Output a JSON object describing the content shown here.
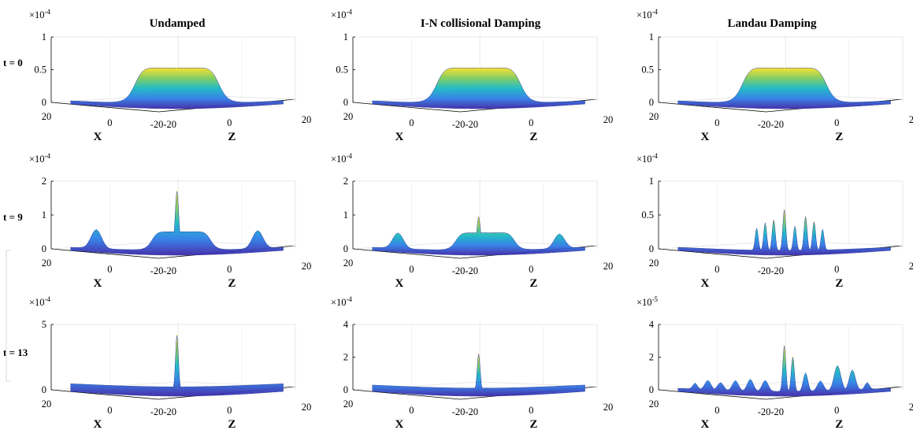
{
  "columns": [
    {
      "title": "Undamped"
    },
    {
      "title": "I-N collisional Damping"
    },
    {
      "title": "Landau Damping"
    }
  ],
  "rows": [
    {
      "label": "t = 0"
    },
    {
      "label": "t = 9"
    },
    {
      "label": "t = 13"
    }
  ],
  "axes": {
    "x_label": "X",
    "z_label": "Z",
    "x_ticks": [
      "20",
      "0",
      "-20"
    ],
    "z_ticks": [
      "-20",
      "0",
      "20"
    ]
  },
  "chart_data": [
    {
      "type": "surface",
      "row": "t = 0",
      "column": "Undamped",
      "exponent_base": "×10",
      "exponent_power": "-4",
      "z_ticks": [
        "0",
        "0.5",
        "1"
      ],
      "ylim": [
        0,
        1
      ],
      "features": [
        {
          "kind": "plateau",
          "pos": 0.5,
          "height": 0.55,
          "width": 0.2
        }
      ],
      "colormap": "parula"
    },
    {
      "type": "surface",
      "row": "t = 0",
      "column": "I-N collisional Damping",
      "exponent_base": "×10",
      "exponent_power": "-4",
      "z_ticks": [
        "0",
        "0.5",
        "1"
      ],
      "ylim": [
        0,
        1
      ],
      "features": [
        {
          "kind": "plateau",
          "pos": 0.5,
          "height": 0.55,
          "width": 0.2
        }
      ],
      "colormap": "parula"
    },
    {
      "type": "surface",
      "row": "t = 0",
      "column": "Landau Damping",
      "exponent_base": "×10",
      "exponent_power": "-4",
      "z_ticks": [
        "0",
        "0.5",
        "1"
      ],
      "ylim": [
        0,
        1
      ],
      "features": [
        {
          "kind": "plateau",
          "pos": 0.5,
          "height": 0.55,
          "width": 0.2
        }
      ],
      "colormap": "parula"
    },
    {
      "type": "surface",
      "row": "t = 9",
      "column": "Undamped",
      "exponent_base": "×10",
      "exponent_power": "-4",
      "z_ticks": [
        "0",
        "1",
        "2"
      ],
      "ylim": [
        0,
        2
      ],
      "features": [
        {
          "kind": "bump",
          "pos": 0.12,
          "height": 0.55,
          "width": 0.035
        },
        {
          "kind": "plateau",
          "pos": 0.52,
          "height": 0.55,
          "width": 0.14
        },
        {
          "kind": "spike",
          "pos": 0.5,
          "height": 1.75,
          "width": 0.012
        },
        {
          "kind": "bump",
          "pos": 0.88,
          "height": 0.52,
          "width": 0.035
        }
      ],
      "colormap": "parula"
    },
    {
      "type": "surface",
      "row": "t = 9",
      "column": "I-N collisional Damping",
      "exponent_base": "×10",
      "exponent_power": "-4",
      "z_ticks": [
        "0",
        "1",
        "2"
      ],
      "ylim": [
        0,
        2
      ],
      "features": [
        {
          "kind": "bump",
          "pos": 0.12,
          "height": 0.45,
          "width": 0.035
        },
        {
          "kind": "plateau",
          "pos": 0.53,
          "height": 0.52,
          "width": 0.14
        },
        {
          "kind": "spike",
          "pos": 0.5,
          "height": 1.0,
          "width": 0.012
        },
        {
          "kind": "bump",
          "pos": 0.88,
          "height": 0.42,
          "width": 0.035
        }
      ],
      "colormap": "parula"
    },
    {
      "type": "surface",
      "row": "t = 9",
      "column": "Landau Damping",
      "exponent_base": "×10",
      "exponent_power": "-4",
      "z_ticks": [
        "0",
        "0.5",
        "1"
      ],
      "ylim": [
        0,
        1
      ],
      "features": [
        {
          "kind": "spike",
          "pos": 0.37,
          "height": 0.32,
          "width": 0.01
        },
        {
          "kind": "spike",
          "pos": 0.41,
          "height": 0.4,
          "width": 0.01
        },
        {
          "kind": "spike",
          "pos": 0.45,
          "height": 0.45,
          "width": 0.01
        },
        {
          "kind": "spike",
          "pos": 0.5,
          "height": 0.6,
          "width": 0.01
        },
        {
          "kind": "spike",
          "pos": 0.55,
          "height": 0.35,
          "width": 0.01
        },
        {
          "kind": "spike",
          "pos": 0.6,
          "height": 0.5,
          "width": 0.01
        },
        {
          "kind": "spike",
          "pos": 0.64,
          "height": 0.42,
          "width": 0.01
        },
        {
          "kind": "spike",
          "pos": 0.68,
          "height": 0.3,
          "width": 0.01
        }
      ],
      "colormap": "parula"
    },
    {
      "type": "surface",
      "row": "t = 13",
      "column": "Undamped",
      "exponent_base": "×10",
      "exponent_power": "-4",
      "z_ticks": [
        "0",
        "5"
      ],
      "ylim": [
        0,
        5
      ],
      "features": [
        {
          "kind": "plateau",
          "pos": 0.5,
          "height": 0.35,
          "width": 0.75
        },
        {
          "kind": "spike",
          "pos": 0.5,
          "height": 4.3,
          "width": 0.01
        }
      ],
      "colormap": "parula"
    },
    {
      "type": "surface",
      "row": "t = 13",
      "column": "I-N collisional Damping",
      "exponent_base": "×10",
      "exponent_power": "-4",
      "z_ticks": [
        "0",
        "2",
        "4"
      ],
      "ylim": [
        0,
        4
      ],
      "features": [
        {
          "kind": "plateau",
          "pos": 0.5,
          "height": 0.2,
          "width": 0.75
        },
        {
          "kind": "spike",
          "pos": 0.5,
          "height": 2.3,
          "width": 0.01
        }
      ],
      "colormap": "parula"
    },
    {
      "type": "surface",
      "row": "t = 13",
      "column": "Landau Damping",
      "exponent_base": "×10",
      "exponent_power": "-5",
      "z_ticks": [
        "0",
        "2",
        "4"
      ],
      "ylim": [
        0,
        4
      ],
      "features": [
        {
          "kind": "bump",
          "pos": 0.08,
          "height": 0.35,
          "width": 0.015
        },
        {
          "kind": "bump",
          "pos": 0.14,
          "height": 0.55,
          "width": 0.02
        },
        {
          "kind": "bump",
          "pos": 0.2,
          "height": 0.45,
          "width": 0.02
        },
        {
          "kind": "bump",
          "pos": 0.27,
          "height": 0.6,
          "width": 0.02
        },
        {
          "kind": "bump",
          "pos": 0.34,
          "height": 0.7,
          "width": 0.02
        },
        {
          "kind": "bump",
          "pos": 0.41,
          "height": 0.65,
          "width": 0.02
        },
        {
          "kind": "spike",
          "pos": 0.5,
          "height": 2.8,
          "width": 0.01
        },
        {
          "kind": "spike",
          "pos": 0.54,
          "height": 2.1,
          "width": 0.01
        },
        {
          "kind": "bump",
          "pos": 0.6,
          "height": 1.1,
          "width": 0.015
        },
        {
          "kind": "bump",
          "pos": 0.67,
          "height": 0.6,
          "width": 0.02
        },
        {
          "kind": "bump",
          "pos": 0.75,
          "height": 1.5,
          "width": 0.022
        },
        {
          "kind": "bump",
          "pos": 0.82,
          "height": 1.2,
          "width": 0.02
        },
        {
          "kind": "bump",
          "pos": 0.89,
          "height": 0.4,
          "width": 0.015
        }
      ],
      "colormap": "parula"
    }
  ]
}
